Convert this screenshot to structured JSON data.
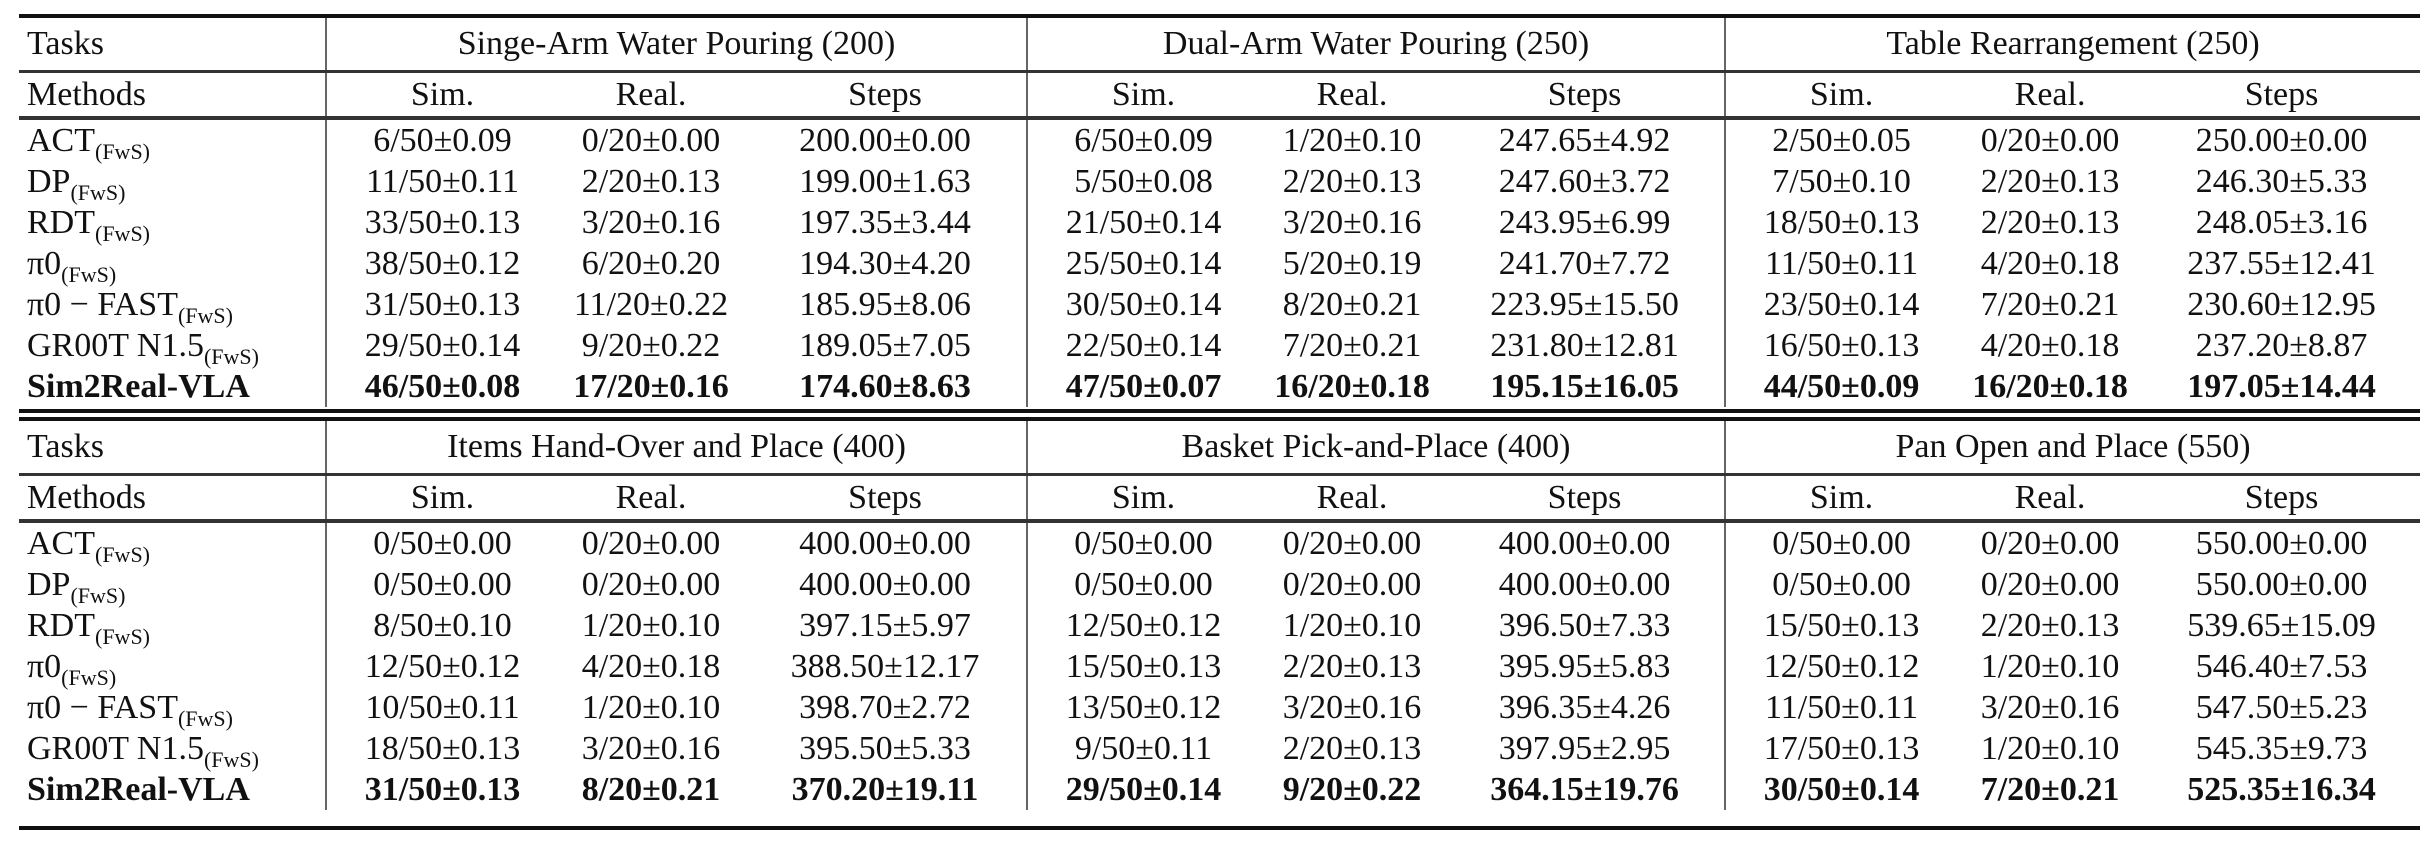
{
  "header": {
    "tasks_label": "Tasks",
    "methods_label": "Methods",
    "sub_columns": [
      "Sim.",
      "Real.",
      "Steps"
    ]
  },
  "methods": [
    {
      "name": "ACT",
      "subscript": "(FwS)"
    },
    {
      "name": "DP",
      "subscript": "(FwS)"
    },
    {
      "name": "RDT",
      "subscript": "(FwS)"
    },
    {
      "name": "π0",
      "subscript": "(FwS)"
    },
    {
      "name": "π0 − FAST",
      "subscript": "(FwS)"
    },
    {
      "name": "GR00T N1.5",
      "subscript": "(FwS)"
    },
    {
      "name": "Sim2Real-VLA",
      "subscript": ""
    }
  ],
  "best_method_index": 6,
  "tables": [
    {
      "tasks": [
        {
          "title": "Singe-Arm Water Pouring (200)",
          "rows": [
            [
              "6/50±0.09",
              "0/20±0.00",
              "200.00±0.00"
            ],
            [
              "11/50±0.11",
              "2/20±0.13",
              "199.00±1.63"
            ],
            [
              "33/50±0.13",
              "3/20±0.16",
              "197.35±3.44"
            ],
            [
              "38/50±0.12",
              "6/20±0.20",
              "194.30±4.20"
            ],
            [
              "31/50±0.13",
              "11/20±0.22",
              "185.95±8.06"
            ],
            [
              "29/50±0.14",
              "9/20±0.22",
              "189.05±7.05"
            ],
            [
              "46/50±0.08",
              "17/20±0.16",
              "174.60±8.63"
            ]
          ]
        },
        {
          "title": "Dual-Arm Water Pouring (250)",
          "rows": [
            [
              "6/50±0.09",
              "1/20±0.10",
              "247.65±4.92"
            ],
            [
              "5/50±0.08",
              "2/20±0.13",
              "247.60±3.72"
            ],
            [
              "21/50±0.14",
              "3/20±0.16",
              "243.95±6.99"
            ],
            [
              "25/50±0.14",
              "5/20±0.19",
              "241.70±7.72"
            ],
            [
              "30/50±0.14",
              "8/20±0.21",
              "223.95±15.50"
            ],
            [
              "22/50±0.14",
              "7/20±0.21",
              "231.80±12.81"
            ],
            [
              "47/50±0.07",
              "16/20±0.18",
              "195.15±16.05"
            ]
          ]
        },
        {
          "title": "Table Rearrangement (250)",
          "rows": [
            [
              "2/50±0.05",
              "0/20±0.00",
              "250.00±0.00"
            ],
            [
              "7/50±0.10",
              "2/20±0.13",
              "246.30±5.33"
            ],
            [
              "18/50±0.13",
              "2/20±0.13",
              "248.05±3.16"
            ],
            [
              "11/50±0.11",
              "4/20±0.18",
              "237.55±12.41"
            ],
            [
              "23/50±0.14",
              "7/20±0.21",
              "230.60±12.95"
            ],
            [
              "16/50±0.13",
              "4/20±0.18",
              "237.20±8.87"
            ],
            [
              "44/50±0.09",
              "16/20±0.18",
              "197.05±14.44"
            ]
          ]
        }
      ]
    },
    {
      "tasks": [
        {
          "title": "Items Hand-Over and Place (400)",
          "rows": [
            [
              "0/50±0.00",
              "0/20±0.00",
              "400.00±0.00"
            ],
            [
              "0/50±0.00",
              "0/20±0.00",
              "400.00±0.00"
            ],
            [
              "8/50±0.10",
              "1/20±0.10",
              "397.15±5.97"
            ],
            [
              "12/50±0.12",
              "4/20±0.18",
              "388.50±12.17"
            ],
            [
              "10/50±0.11",
              "1/20±0.10",
              "398.70±2.72"
            ],
            [
              "18/50±0.13",
              "3/20±0.16",
              "395.50±5.33"
            ],
            [
              "31/50±0.13",
              "8/20±0.21",
              "370.20±19.11"
            ]
          ]
        },
        {
          "title": "Basket Pick-and-Place (400)",
          "rows": [
            [
              "0/50±0.00",
              "0/20±0.00",
              "400.00±0.00"
            ],
            [
              "0/50±0.00",
              "0/20±0.00",
              "400.00±0.00"
            ],
            [
              "12/50±0.12",
              "1/20±0.10",
              "396.50±7.33"
            ],
            [
              "15/50±0.13",
              "2/20±0.13",
              "395.95±5.83"
            ],
            [
              "13/50±0.12",
              "3/20±0.16",
              "396.35±4.26"
            ],
            [
              "9/50±0.11",
              "2/20±0.13",
              "397.95±2.95"
            ],
            [
              "29/50±0.14",
              "9/20±0.22",
              "364.15±19.76"
            ]
          ]
        },
        {
          "title": "Pan Open and Place (550)",
          "rows": [
            [
              "0/50±0.00",
              "0/20±0.00",
              "550.00±0.00"
            ],
            [
              "0/50±0.00",
              "0/20±0.00",
              "550.00±0.00"
            ],
            [
              "15/50±0.13",
              "2/20±0.13",
              "539.65±15.09"
            ],
            [
              "12/50±0.12",
              "1/20±0.10",
              "546.40±7.53"
            ],
            [
              "11/50±0.11",
              "3/20±0.16",
              "547.50±5.23"
            ],
            [
              "17/50±0.13",
              "1/20±0.10",
              "545.35±9.73"
            ],
            [
              "30/50±0.14",
              "7/20±0.21",
              "525.35±16.34"
            ]
          ]
        }
      ]
    }
  ]
}
